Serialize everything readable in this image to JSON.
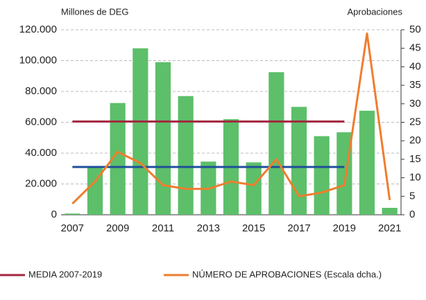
{
  "chart_data": {
    "type": "bar",
    "y_label": "Millones de DEG",
    "y2_label": "Aprobaciones",
    "categories": [
      "2007",
      null,
      "2009",
      null,
      "2011",
      null,
      "2013",
      null,
      "2015",
      null,
      "2017",
      null,
      "2019",
      null,
      "2021"
    ],
    "series": [
      {
        "type": "bar",
        "color": "#5dbf6a",
        "values": [
          800,
          31000,
          72500,
          108000,
          99000,
          77000,
          34500,
          62000,
          34000,
          92500,
          70000,
          51000,
          53500,
          67500,
          4500
        ]
      },
      {
        "type": "line",
        "name": "MEDIA 2007-2019",
        "color": "#a3263f",
        "values": [
          60500,
          60500,
          60500,
          60500,
          60500,
          60500,
          60500,
          60500,
          60500,
          60500,
          60500,
          60500,
          60500,
          null,
          null
        ]
      },
      {
        "type": "line",
        "color": "#1f4f9a",
        "values": [
          31000,
          31000,
          31000,
          31000,
          31000,
          31000,
          31000,
          31000,
          31000,
          31000,
          31000,
          31000,
          31000,
          null,
          null
        ]
      },
      {
        "type": "line",
        "axis": "y2",
        "name": "NÚMERO DE APROBACIONES (Escala dcha.)",
        "color": "#ef7d2e",
        "values": [
          3,
          9,
          17,
          14,
          8,
          7,
          7,
          9,
          8,
          15,
          5,
          6,
          8,
          49,
          4
        ]
      }
    ],
    "ylim": [
      0,
      120000
    ],
    "yticks": [
      0,
      {
        "value": 20000,
        "label": "20.000"
      },
      {
        "value": 40000,
        "label": "40.000"
      },
      {
        "value": 60000,
        "label": "60.000"
      },
      {
        "value": 80000,
        "label": "80.000"
      },
      {
        "value": 100000,
        "label": "100.000"
      },
      {
        "value": 120000,
        "label": "120.000"
      }
    ],
    "y2lim": [
      0,
      50
    ],
    "y2ticks": [
      0,
      5,
      10,
      15,
      20,
      25,
      30,
      35,
      40,
      45,
      50
    ],
    "grid": true
  }
}
